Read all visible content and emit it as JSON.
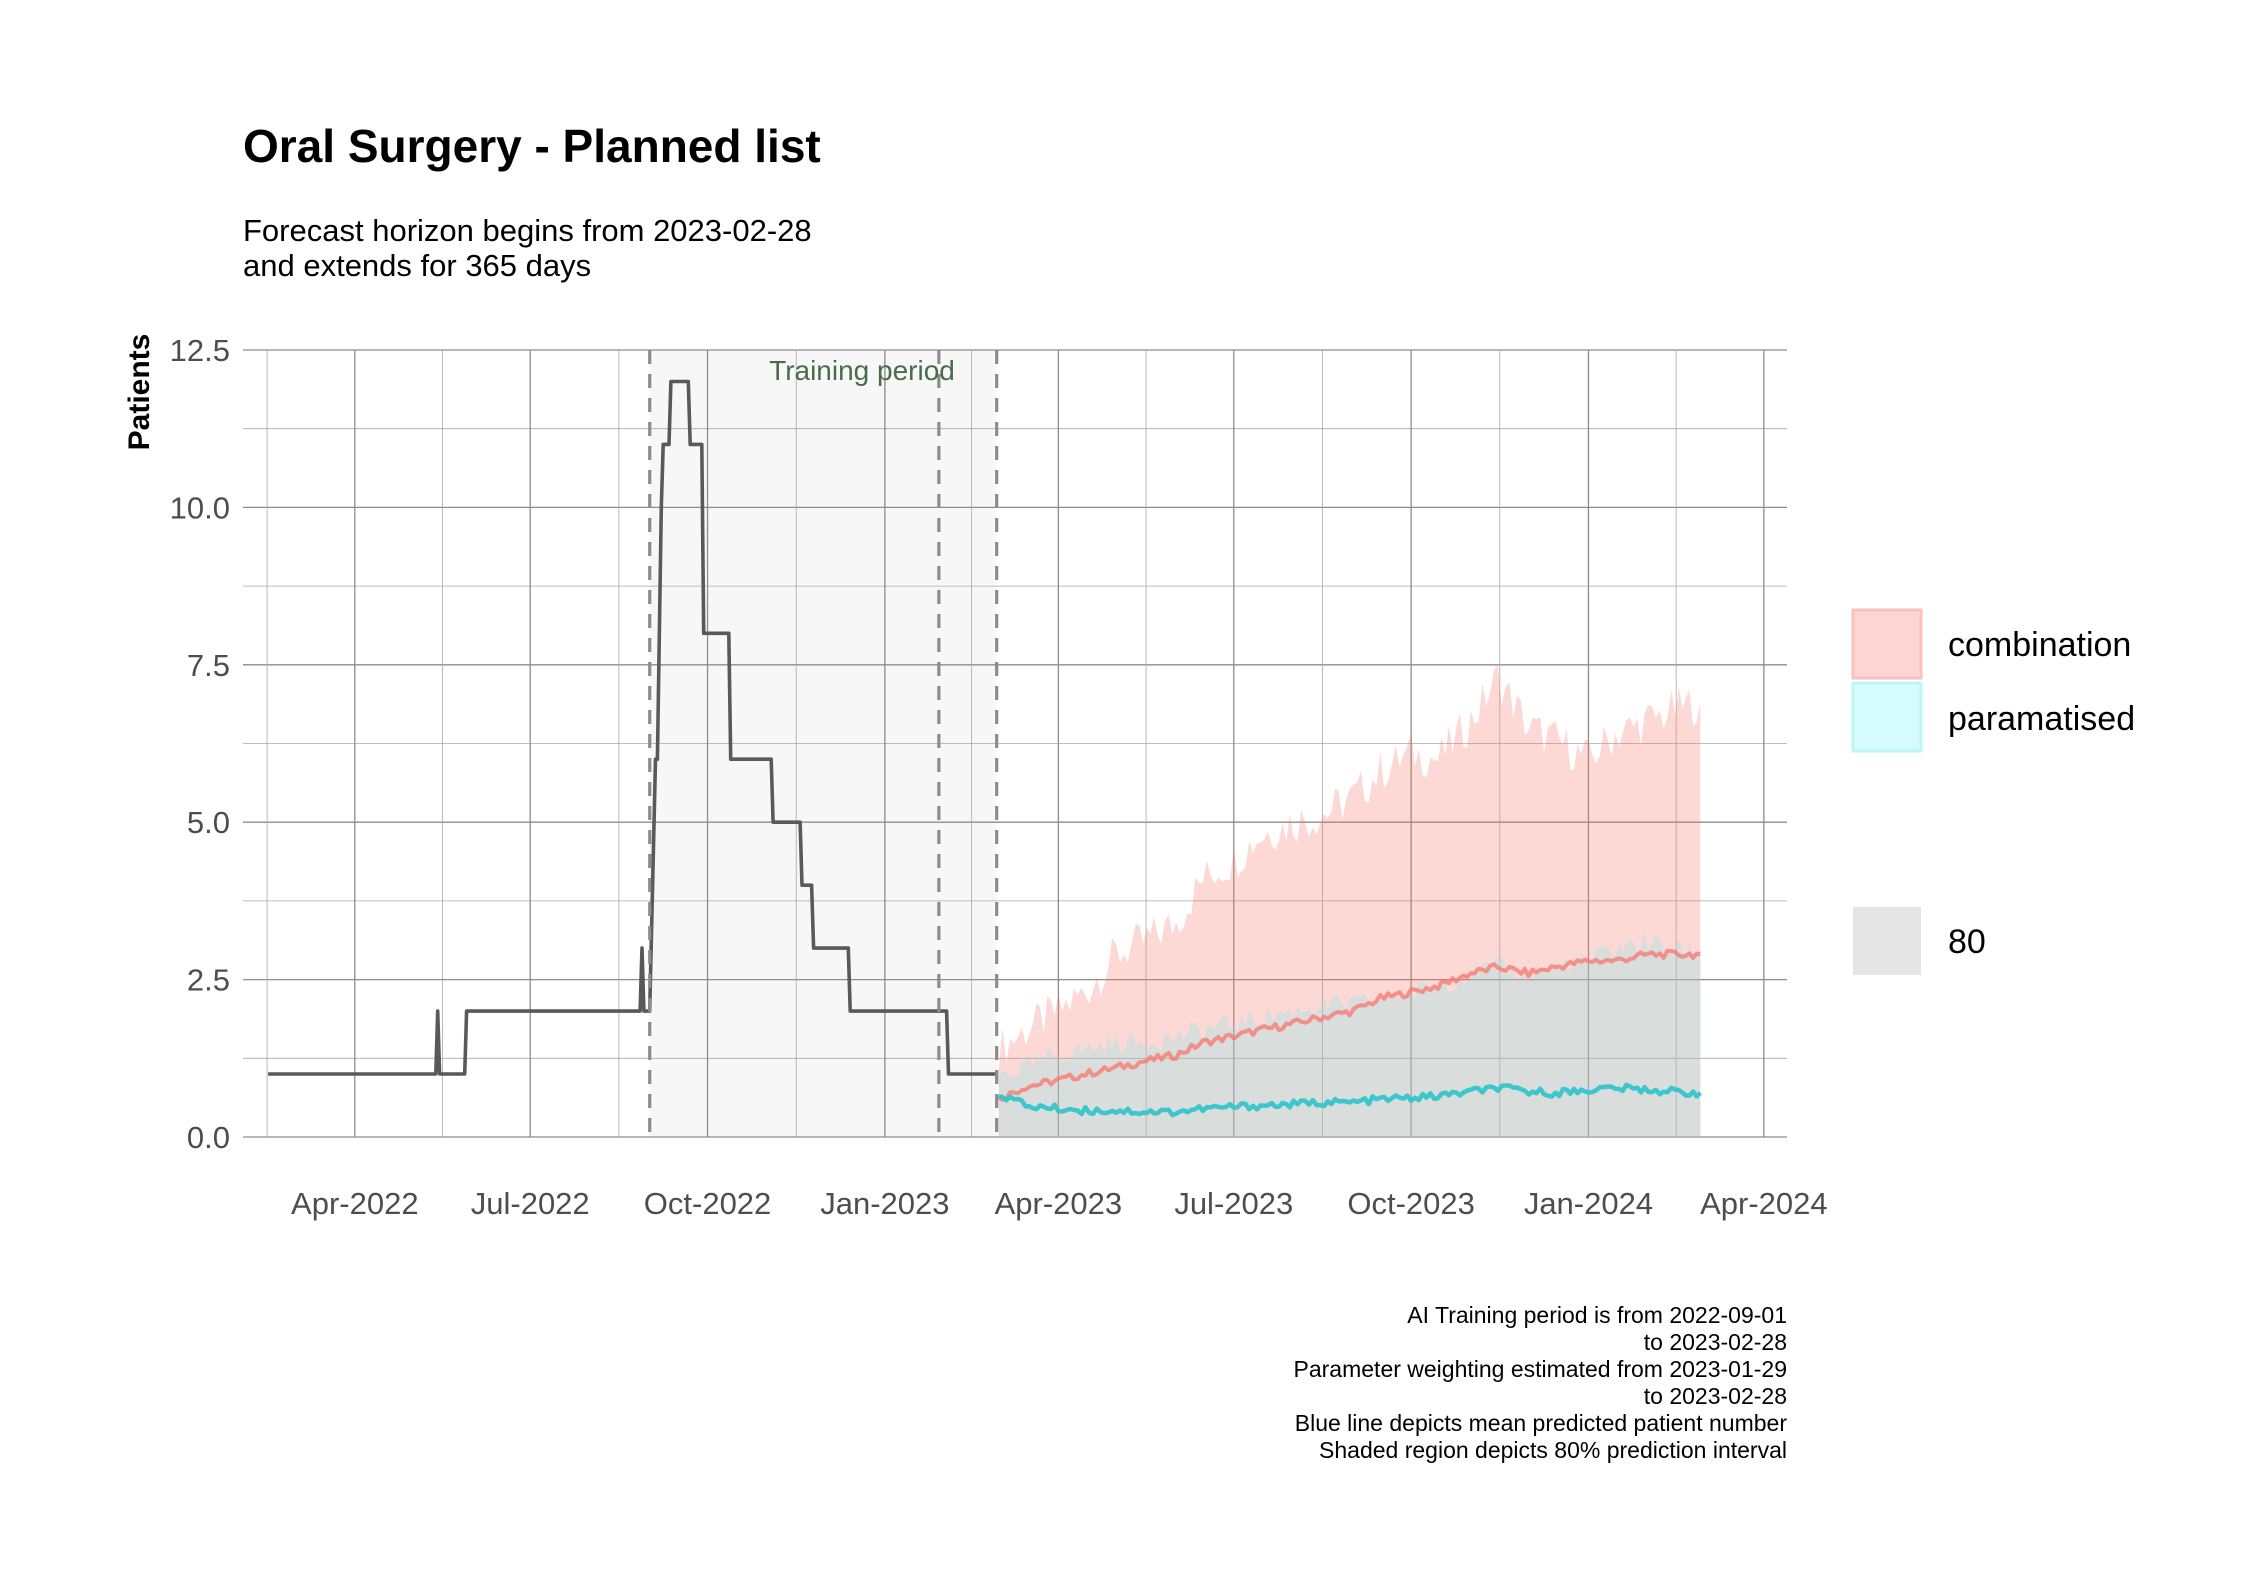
{
  "chart_data": {
    "type": "line",
    "title": "Oral Surgery - Planned list",
    "subtitle": [
      "Forecast horizon begins from 2023-02-28",
      "and extends for 365 days"
    ],
    "xlabel": "",
    "ylabel": "Patients",
    "x_type": "date",
    "xlim": [
      "2022-02-02",
      "2024-04-13"
    ],
    "ylim": [
      0,
      12.5
    ],
    "x_ticks": [
      "2022-04-01",
      "2022-07-01",
      "2022-10-01",
      "2023-01-01",
      "2023-04-01",
      "2023-07-01",
      "2023-10-01",
      "2024-01-01",
      "2024-04-01"
    ],
    "x_tick_labels": [
      "Apr-2022",
      "Jul-2022",
      "Oct-2022",
      "Jan-2023",
      "Apr-2023",
      "Jul-2023",
      "Oct-2023",
      "Jan-2024",
      "Apr-2024"
    ],
    "y_ticks": [
      0,
      2.5,
      5,
      7.5,
      10,
      12.5
    ],
    "y_tick_labels": [
      "0.0",
      "2.5",
      "5.0",
      "7.5",
      "10.0",
      "12.5"
    ],
    "grid": true,
    "training_period": {
      "label": "Training period",
      "start": "2022-09-01",
      "end": "2023-02-28"
    },
    "reference_lines": [
      "2022-09-01",
      "2023-01-29",
      "2023-02-28"
    ],
    "observed": {
      "color": "#595959",
      "points": [
        [
          "2022-02-15",
          1
        ],
        [
          "2022-05-13",
          1
        ],
        [
          "2022-05-14",
          2
        ],
        [
          "2022-05-15",
          1
        ],
        [
          "2022-05-28",
          1
        ],
        [
          "2022-05-29",
          2
        ],
        [
          "2022-08-27",
          2
        ],
        [
          "2022-08-28",
          3
        ],
        [
          "2022-08-29",
          2
        ],
        [
          "2022-09-01",
          2
        ],
        [
          "2022-09-04",
          6
        ],
        [
          "2022-09-05",
          6
        ],
        [
          "2022-09-07",
          10
        ],
        [
          "2022-09-08",
          11
        ],
        [
          "2022-09-11",
          11
        ],
        [
          "2022-09-12",
          12
        ],
        [
          "2022-09-21",
          12
        ],
        [
          "2022-09-22",
          11
        ],
        [
          "2022-09-28",
          11
        ],
        [
          "2022-09-29",
          8
        ],
        [
          "2022-10-12",
          8
        ],
        [
          "2022-10-13",
          6
        ],
        [
          "2022-11-03",
          6
        ],
        [
          "2022-11-04",
          5
        ],
        [
          "2022-11-18",
          5
        ],
        [
          "2022-11-19",
          4
        ],
        [
          "2022-11-24",
          4
        ],
        [
          "2022-11-25",
          3
        ],
        [
          "2022-12-13",
          3
        ],
        [
          "2022-12-14",
          2
        ],
        [
          "2023-02-02",
          2
        ],
        [
          "2023-02-03",
          1
        ],
        [
          "2023-02-28",
          1
        ]
      ]
    },
    "series": [
      {
        "name": "combination",
        "color": "#f8766d",
        "fill": "#f8766d",
        "points": [
          {
            "x": "2023-03-01",
            "mean": 0.6,
            "lo": 0.0,
            "hi": 1.4
          },
          {
            "x": "2023-03-15",
            "mean": 0.8,
            "lo": 0.0,
            "hi": 1.7
          },
          {
            "x": "2023-04-01",
            "mean": 0.9,
            "lo": 0.0,
            "hi": 2.0
          },
          {
            "x": "2023-04-15",
            "mean": 1.0,
            "lo": 0.0,
            "hi": 2.3
          },
          {
            "x": "2023-05-01",
            "mean": 1.1,
            "lo": 0.0,
            "hi": 2.9
          },
          {
            "x": "2023-05-15",
            "mean": 1.2,
            "lo": 0.0,
            "hi": 3.1
          },
          {
            "x": "2023-06-01",
            "mean": 1.3,
            "lo": 0.0,
            "hi": 3.4
          },
          {
            "x": "2023-06-15",
            "mean": 1.5,
            "lo": 0.0,
            "hi": 4.1
          },
          {
            "x": "2023-07-01",
            "mean": 1.6,
            "lo": 0.0,
            "hi": 4.4
          },
          {
            "x": "2023-07-15",
            "mean": 1.7,
            "lo": 0.0,
            "hi": 4.8
          },
          {
            "x": "2023-08-01",
            "mean": 1.8,
            "lo": 0.0,
            "hi": 5.0
          },
          {
            "x": "2023-08-15",
            "mean": 1.9,
            "lo": 0.0,
            "hi": 5.1
          },
          {
            "x": "2023-09-01",
            "mean": 2.0,
            "lo": 0.0,
            "hi": 5.4
          },
          {
            "x": "2023-09-15",
            "mean": 2.2,
            "lo": 0.0,
            "hi": 5.8
          },
          {
            "x": "2023-10-01",
            "mean": 2.3,
            "lo": 0.0,
            "hi": 6.1
          },
          {
            "x": "2023-10-15",
            "mean": 2.4,
            "lo": 0.0,
            "hi": 6.0
          },
          {
            "x": "2023-11-01",
            "mean": 2.6,
            "lo": 0.0,
            "hi": 6.6
          },
          {
            "x": "2023-11-15",
            "mean": 2.7,
            "lo": 0.0,
            "hi": 7.3
          },
          {
            "x": "2023-12-01",
            "mean": 2.6,
            "lo": 0.0,
            "hi": 6.5
          },
          {
            "x": "2023-12-15",
            "mean": 2.7,
            "lo": 0.0,
            "hi": 6.3
          },
          {
            "x": "2024-01-01",
            "mean": 2.8,
            "lo": 0.0,
            "hi": 6.0
          },
          {
            "x": "2024-01-15",
            "mean": 2.8,
            "lo": 0.0,
            "hi": 6.4
          },
          {
            "x": "2024-02-01",
            "mean": 2.9,
            "lo": 0.0,
            "hi": 6.6
          },
          {
            "x": "2024-02-15",
            "mean": 2.9,
            "lo": 0.0,
            "hi": 6.8
          },
          {
            "x": "2024-02-28",
            "mean": 2.9,
            "lo": 0.0,
            "hi": 6.9
          }
        ]
      },
      {
        "name": "paramatised",
        "color": "#35c4c9",
        "fill": "#8ee6ea",
        "points": [
          {
            "x": "2023-03-01",
            "mean": 0.7,
            "lo": 0.0,
            "hi": 1.0
          },
          {
            "x": "2023-03-15",
            "mean": 0.5,
            "lo": 0.0,
            "hi": 1.1
          },
          {
            "x": "2023-04-01",
            "mean": 0.45,
            "lo": 0.0,
            "hi": 1.3
          },
          {
            "x": "2023-04-15",
            "mean": 0.42,
            "lo": 0.0,
            "hi": 1.4
          },
          {
            "x": "2023-05-01",
            "mean": 0.42,
            "lo": 0.0,
            "hi": 1.5
          },
          {
            "x": "2023-05-15",
            "mean": 0.4,
            "lo": 0.0,
            "hi": 1.5
          },
          {
            "x": "2023-06-01",
            "mean": 0.4,
            "lo": 0.0,
            "hi": 1.6
          },
          {
            "x": "2023-06-15",
            "mean": 0.45,
            "lo": 0.0,
            "hi": 1.7
          },
          {
            "x": "2023-07-01",
            "mean": 0.48,
            "lo": 0.0,
            "hi": 1.8
          },
          {
            "x": "2023-07-15",
            "mean": 0.5,
            "lo": 0.0,
            "hi": 1.9
          },
          {
            "x": "2023-08-01",
            "mean": 0.52,
            "lo": 0.0,
            "hi": 2.0
          },
          {
            "x": "2023-08-15",
            "mean": 0.55,
            "lo": 0.0,
            "hi": 2.1
          },
          {
            "x": "2023-09-01",
            "mean": 0.55,
            "lo": 0.0,
            "hi": 2.1
          },
          {
            "x": "2023-09-15",
            "mean": 0.6,
            "lo": 0.0,
            "hi": 2.2
          },
          {
            "x": "2023-10-01",
            "mean": 0.62,
            "lo": 0.0,
            "hi": 2.3
          },
          {
            "x": "2023-10-15",
            "mean": 0.65,
            "lo": 0.0,
            "hi": 2.4
          },
          {
            "x": "2023-11-01",
            "mean": 0.72,
            "lo": 0.0,
            "hi": 2.6
          },
          {
            "x": "2023-11-15",
            "mean": 0.78,
            "lo": 0.0,
            "hi": 2.7
          },
          {
            "x": "2023-12-01",
            "mean": 0.72,
            "lo": 0.0,
            "hi": 2.6
          },
          {
            "x": "2023-12-15",
            "mean": 0.7,
            "lo": 0.0,
            "hi": 2.7
          },
          {
            "x": "2024-01-01",
            "mean": 0.75,
            "lo": 0.0,
            "hi": 2.8
          },
          {
            "x": "2024-01-15",
            "mean": 0.78,
            "lo": 0.0,
            "hi": 3.0
          },
          {
            "x": "2024-02-01",
            "mean": 0.75,
            "lo": 0.0,
            "hi": 3.1
          },
          {
            "x": "2024-02-15",
            "mean": 0.72,
            "lo": 0.0,
            "hi": 3.0
          },
          {
            "x": "2024-02-28",
            "mean": 0.7,
            "lo": 0.0,
            "hi": 2.9
          }
        ]
      }
    ],
    "legend": {
      "placement": "right",
      "entries": [
        {
          "label": "combination",
          "color": "#f8766d"
        },
        {
          "label": "paramatised",
          "color": "#8ee6ea"
        }
      ],
      "interval": {
        "label": "80",
        "color": "#d9d9d9"
      }
    },
    "caption": [
      "AI Training period is from 2022-09-01",
      "to 2023-02-28",
      "Parameter weighting estimated from 2023-01-29",
      "to 2023-02-28",
      "Blue line depicts mean predicted patient number",
      "Shaded region depicts 80% prediction interval"
    ]
  }
}
